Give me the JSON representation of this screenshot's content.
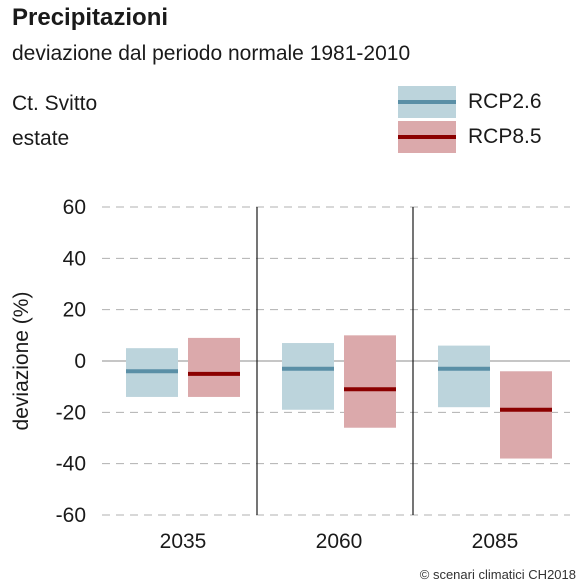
{
  "title": "Precipitazioni",
  "subtitle": "deviazione dal periodo normale 1981-2010",
  "region": "Ct. Svitto",
  "season": "estate",
  "credit": "© scenari climatici CH2018",
  "colors": {
    "rcp26_box": "#bcd4dc",
    "rcp26_line": "#5a8fa6",
    "rcp85_box": "#dba9ab",
    "rcp85_line": "#8b0000",
    "grid": "#b0b0b0",
    "zero": "#b3b3b3",
    "divider": "#1a1a1a"
  },
  "legend": [
    {
      "label": "RCP2.6",
      "series": "rcp26"
    },
    {
      "label": "RCP8.5",
      "series": "rcp85"
    }
  ],
  "chart_data": {
    "type": "bar",
    "subtype": "range-box-with-median",
    "ylabel": "deviazione (%)",
    "ylim": [
      -60,
      60
    ],
    "yticks": [
      60,
      40,
      20,
      0,
      -20,
      -40,
      -60
    ],
    "categories": [
      "2035",
      "2060",
      "2085"
    ],
    "series": [
      {
        "name": "RCP2.6",
        "key": "rcp26",
        "low": [
          -14,
          -19,
          -18
        ],
        "high": [
          5,
          7,
          6
        ],
        "median": [
          -4,
          -3,
          -3
        ]
      },
      {
        "name": "RCP8.5",
        "key": "rcp85",
        "low": [
          -14,
          -26,
          -38
        ],
        "high": [
          9,
          10,
          -4
        ],
        "median": [
          -5,
          -11,
          -19
        ]
      }
    ],
    "grid": true,
    "legend_position": "top-right"
  }
}
